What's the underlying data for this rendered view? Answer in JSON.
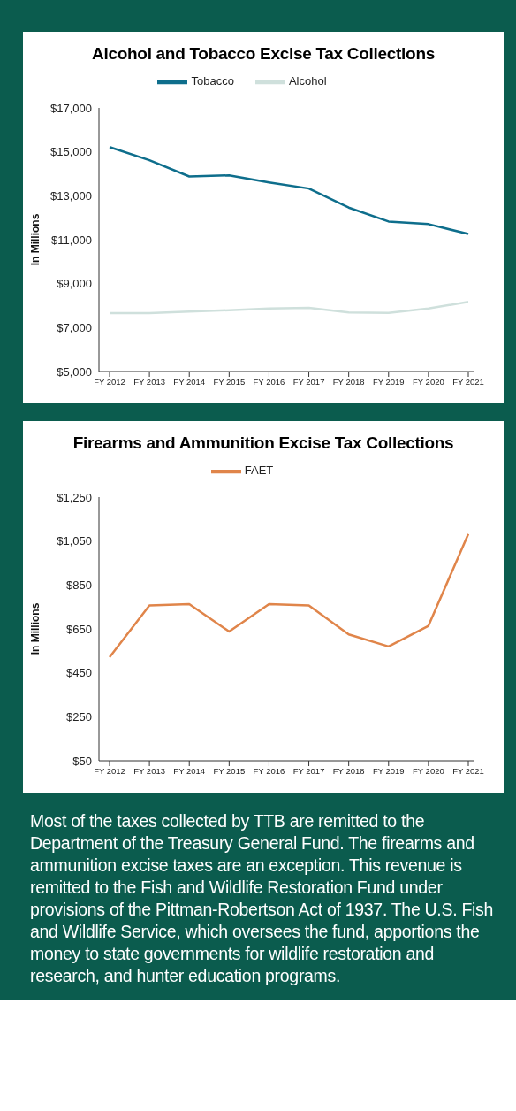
{
  "chart_data": [
    {
      "type": "line",
      "title": "Alcohol and Tobacco Excise Tax Collections",
      "ylabel": "In Millions",
      "categories": [
        "FY 2012",
        "FY 2013",
        "FY 2014",
        "FY 2015",
        "FY 2016",
        "FY 2017",
        "FY 2018",
        "FY 2019",
        "FY 2020",
        "FY 2021"
      ],
      "series": [
        {
          "name": "Tobacco",
          "color": "#0e6e8c",
          "values": [
            15220,
            14620,
            13880,
            13930,
            13610,
            13330,
            12460,
            11830,
            11710,
            11260
          ]
        },
        {
          "name": "Alcohol",
          "color": "#cfe0dc",
          "values": [
            7660,
            7660,
            7730,
            7790,
            7870,
            7900,
            7690,
            7670,
            7870,
            8170
          ]
        }
      ],
      "ylim": [
        5000,
        17000
      ],
      "yticks": [
        {
          "value": 5000,
          "label": "$5,000"
        },
        {
          "value": 7000,
          "label": "$7,000"
        },
        {
          "value": 9000,
          "label": "$9,000"
        },
        {
          "value": 11000,
          "label": "$11,000"
        },
        {
          "value": 13000,
          "label": "$13,000"
        },
        {
          "value": 15000,
          "label": "$15,000"
        },
        {
          "value": 17000,
          "label": "$17,000"
        }
      ],
      "grid": false,
      "legend": "top",
      "marker": "none",
      "line_style": "solid"
    },
    {
      "type": "line",
      "title": "Firearms and Ammunition Excise Tax Collections",
      "ylabel": "In Millions",
      "categories": [
        "FY 2012",
        "FY 2013",
        "FY 2014",
        "FY 2015",
        "FY 2016",
        "FY 2017",
        "FY 2018",
        "FY 2019",
        "FY 2020",
        "FY 2021"
      ],
      "series": [
        {
          "name": "FAET",
          "color": "#e0854a",
          "values": [
            521,
            757,
            763,
            638,
            763,
            757,
            625,
            570,
            664,
            1082
          ]
        }
      ],
      "ylim": [
        50,
        1250
      ],
      "yticks": [
        {
          "value": 50,
          "label": "$50"
        },
        {
          "value": 250,
          "label": "$250"
        },
        {
          "value": 450,
          "label": "$450"
        },
        {
          "value": 650,
          "label": "$650"
        },
        {
          "value": 850,
          "label": "$850"
        },
        {
          "value": 1050,
          "label": "$1,050"
        },
        {
          "value": 1250,
          "label": "$1,250"
        }
      ],
      "grid": false,
      "legend": "top",
      "marker": "none",
      "line_style": "solid",
      "annotations": [
        "Most of the taxes collected by TTB are remitted to the Department of the Treasury General Fund. The firearms and ammunition excise taxes are an exception. This revenue is remitted to the Fish and Wildlife Restoration Fund under provisions of the Pittman-Robertson Act of 1937. The U.S. Fish and Wildlife Service, which oversees the fund, apportions the money to state governments for wildlife restoration and research, and hunter education programs."
      ]
    }
  ]
}
